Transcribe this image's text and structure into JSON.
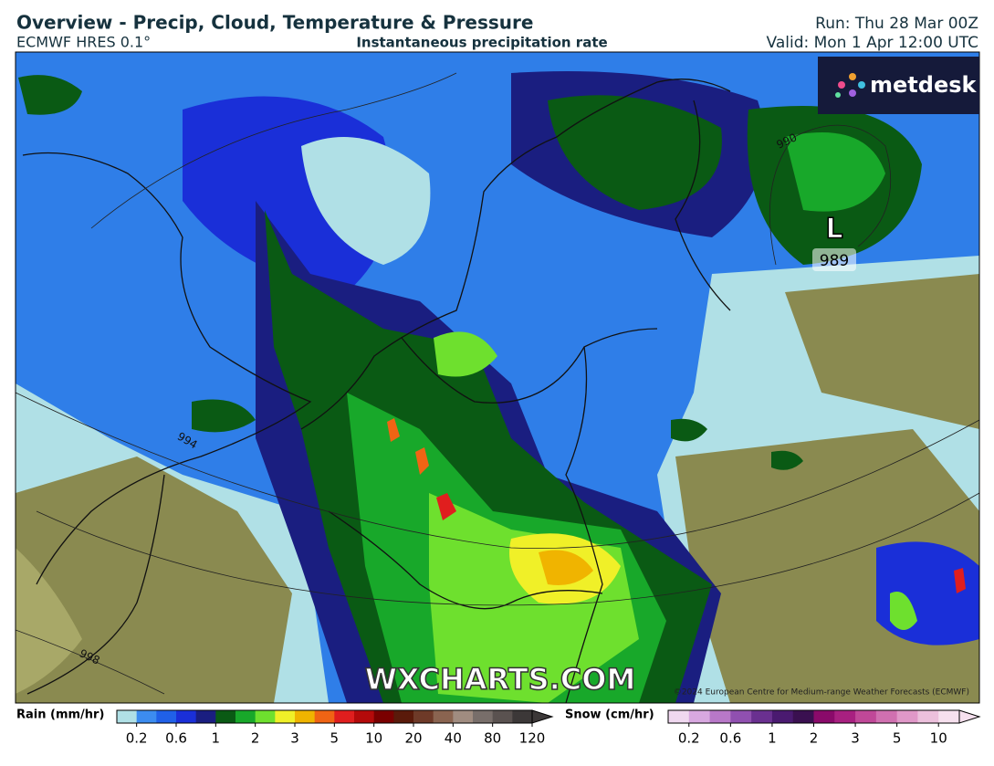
{
  "header": {
    "title": "Overview - Precip, Cloud, Temperature & Pressure",
    "model": "ECMWF HRES 0.1°",
    "field": "Instantaneous precipitation rate",
    "run": "Run: Thu 28 Mar 00Z",
    "valid": "Valid: Mon 1 Apr 12:00 UTC"
  },
  "logo": "metdesk",
  "map": {
    "isobar_labels": [
      "990",
      "994",
      "998"
    ],
    "low": {
      "symbol": "L",
      "pressure": "989"
    },
    "watermark": "WXCHARTS.COM",
    "copyright": "©2024 European Centre for Medium-range Weather Forecasts (ECMWF)"
  },
  "legend": {
    "rain": {
      "label": "Rain (mm/hr)",
      "ticks": [
        0.2,
        0.6,
        1,
        2,
        3,
        5,
        10,
        20,
        40,
        80,
        120
      ],
      "colors": [
        "#b0e0e6",
        "#3c8cf0",
        "#2060e8",
        "#1a2fd8",
        "#1a1e80",
        "#0a5a14",
        "#18a82a",
        "#6ee02e",
        "#f0f028",
        "#f0b400",
        "#f06414",
        "#e01e1e",
        "#b40a0a",
        "#7a0000",
        "#5a1a0a",
        "#6e3a28",
        "#8a6450",
        "#a08c80",
        "#786e6a",
        "#5a5250",
        "#3c3838"
      ]
    },
    "snow": {
      "label": "Snow (cm/hr)",
      "ticks": [
        0.2,
        0.6,
        1,
        2,
        3,
        5,
        10
      ],
      "colors": [
        "#f0d8f0",
        "#d8a8e0",
        "#b878c8",
        "#9050b0",
        "#6a3090",
        "#4a1a70",
        "#3a1050",
        "#8a0a6a",
        "#a82080",
        "#c04898",
        "#d070b0",
        "#e098c8",
        "#ecc0dc",
        "#f6e0ee"
      ]
    }
  }
}
